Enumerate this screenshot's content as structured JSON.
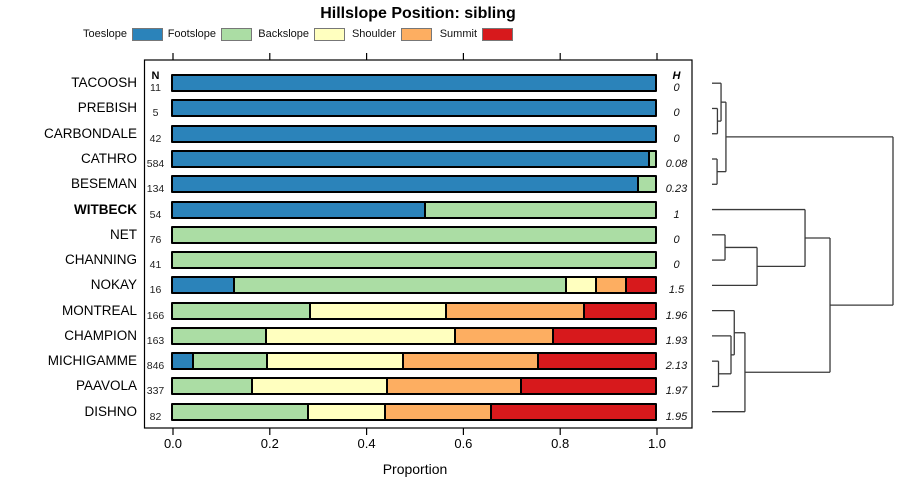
{
  "title": "Hillslope Position: sibling",
  "xlabel": "Proportion",
  "n_header": "N",
  "h_header": "H",
  "x_tick_labels": [
    "0.0",
    "0.2",
    "0.4",
    "0.6",
    "0.8",
    "1.0"
  ],
  "chart_data": {
    "type": "bar",
    "stacked": true,
    "orientation": "horizontal",
    "xlim": [
      0,
      1
    ],
    "grid": false,
    "legend_position": "top",
    "categories": [
      {
        "name": "Toeslope",
        "color": "#2B83BA"
      },
      {
        "name": "Footslope",
        "color": "#ABDDA4"
      },
      {
        "name": "Backslope",
        "color": "#FFFFBF"
      },
      {
        "name": "Shoulder",
        "color": "#FDAE61"
      },
      {
        "name": "Summit",
        "color": "#D7191C"
      }
    ],
    "rows": [
      {
        "name": "TACOOSH",
        "n": 11,
        "h": "0",
        "bold": false,
        "values": [
          1,
          0,
          0,
          0,
          0
        ]
      },
      {
        "name": "PREBISH",
        "n": 5,
        "h": "0",
        "bold": false,
        "values": [
          1,
          0,
          0,
          0,
          0
        ]
      },
      {
        "name": "CARBONDALE",
        "n": 42,
        "h": "0",
        "bold": false,
        "values": [
          1,
          0,
          0,
          0,
          0
        ]
      },
      {
        "name": "CATHRO",
        "n": 584,
        "h": "0.08",
        "bold": false,
        "values": [
          0.985,
          0.015,
          0,
          0,
          0
        ]
      },
      {
        "name": "BESEMAN",
        "n": 134,
        "h": "0.23",
        "bold": false,
        "values": [
          0.963,
          0.037,
          0,
          0,
          0
        ]
      },
      {
        "name": "WITBECK",
        "n": 54,
        "h": "1",
        "bold": true,
        "values": [
          0.52,
          0.48,
          0,
          0,
          0
        ]
      },
      {
        "name": "NET",
        "n": 76,
        "h": "0",
        "bold": false,
        "values": [
          0,
          1,
          0,
          0,
          0
        ]
      },
      {
        "name": "CHANNING",
        "n": 41,
        "h": "0",
        "bold": false,
        "values": [
          0,
          1,
          0,
          0,
          0
        ]
      },
      {
        "name": "NOKAY",
        "n": 16,
        "h": "1.5",
        "bold": false,
        "values": [
          0.125,
          0.688,
          0.0625,
          0.0625,
          0.062
        ]
      },
      {
        "name": "MONTREAL",
        "n": 166,
        "h": "1.96",
        "bold": false,
        "values": [
          0,
          0.282,
          0.283,
          0.285,
          0.15
        ]
      },
      {
        "name": "CHAMPION",
        "n": 163,
        "h": "1.93",
        "bold": false,
        "values": [
          0,
          0.19,
          0.393,
          0.203,
          0.214
        ]
      },
      {
        "name": "MICHIGAMME",
        "n": 846,
        "h": "2.13",
        "bold": false,
        "values": [
          0.039,
          0.154,
          0.282,
          0.28,
          0.245
        ]
      },
      {
        "name": "PAAVOLA",
        "n": 337,
        "h": "1.97",
        "bold": false,
        "values": [
          0,
          0.161,
          0.28,
          0.278,
          0.281
        ]
      },
      {
        "name": "DISHNO",
        "n": 82,
        "h": "1.95",
        "bold": false,
        "values": [
          0,
          0.279,
          0.158,
          0.22,
          0.343
        ]
      }
    ],
    "dendrogram": {
      "d": 1,
      "children": [
        {
          "d": 0.077,
          "children": [
            {
              "d": 0.05,
              "children": [
                {
                  "leaf": "TACOOSH"
                },
                {
                  "d": 0.03,
                  "children": [
                    {
                      "leaf": "PREBISH"
                    },
                    {
                      "leaf": "CARBONDALE"
                    }
                  ]
                }
              ]
            },
            {
              "d": 0.028,
              "children": [
                {
                  "leaf": "CATHRO"
                },
                {
                  "leaf": "BESEMAN"
                }
              ]
            }
          ]
        },
        {
          "d": 0.652,
          "children": [
            {
              "d": 0.514,
              "children": [
                {
                  "leaf": "WITBECK"
                },
                {
                  "d": 0.249,
                  "children": [
                    {
                      "d": 0.072,
                      "children": [
                        {
                          "leaf": "NET"
                        },
                        {
                          "leaf": "CHANNING"
                        }
                      ]
                    },
                    {
                      "leaf": "NOKAY"
                    }
                  ]
                }
              ]
            },
            {
              "d": 0.182,
              "children": [
                {
                  "d": 0.123,
                  "children": [
                    {
                      "leaf": "MONTREAL"
                    },
                    {
                      "d": 0.105,
                      "children": [
                        {
                          "leaf": "CHAMPION"
                        },
                        {
                          "d": 0.036,
                          "children": [
                            {
                              "leaf": "MICHIGAMME"
                            },
                            {
                              "leaf": "PAAVOLA"
                            }
                          ]
                        }
                      ]
                    }
                  ]
                },
                {
                  "leaf": "DISHNO"
                }
              ]
            }
          ]
        }
      ]
    },
    "line_color": "#3a3a3a",
    "axis_color": "#000000"
  }
}
